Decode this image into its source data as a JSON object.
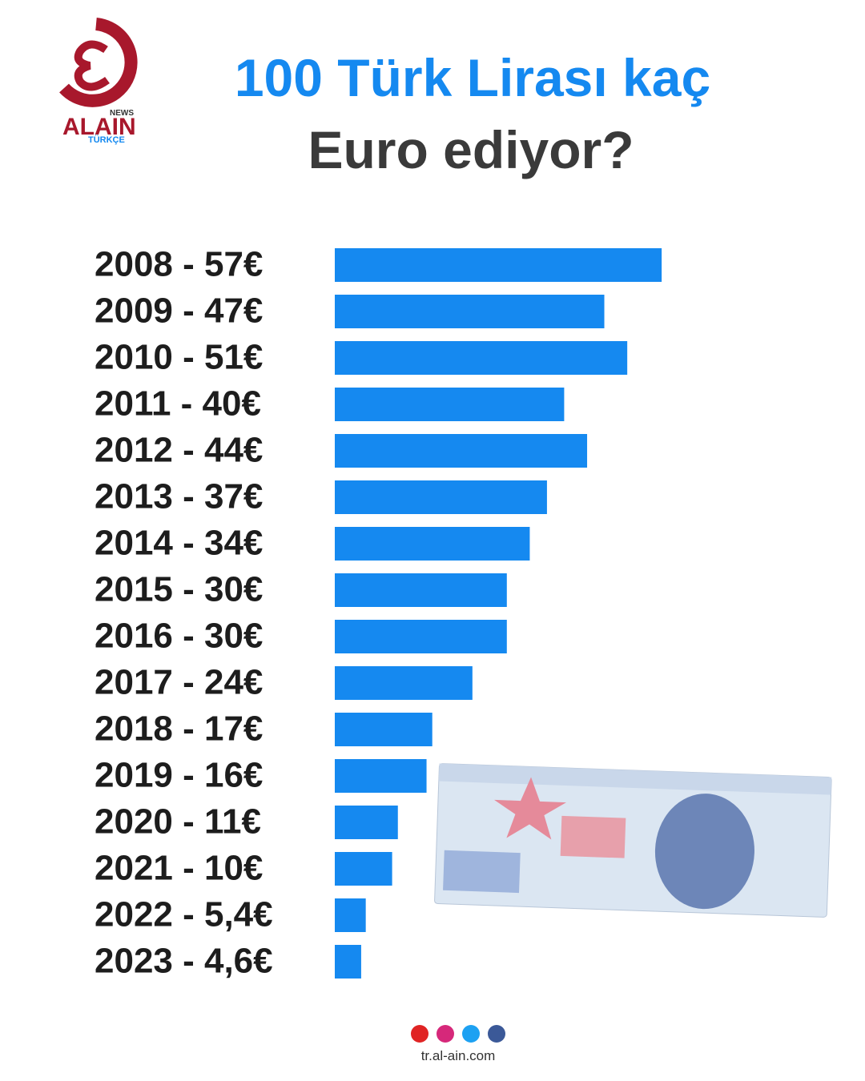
{
  "brand": {
    "name": "ALAIN",
    "tag": "NEWS",
    "sub": "TÜRKÇE"
  },
  "chart_data": {
    "type": "bar",
    "orientation": "horizontal",
    "title": "100 Türk Lirası kaç",
    "subtitle": "Euro ediyor?",
    "categories": [
      "2008 - 57€",
      "2009 - 47€",
      "2010 - 51€",
      "2011 - 40€",
      "2012 - 44€",
      "2013 - 37€",
      "2014 - 34€",
      "2015 - 30€",
      "2016 - 30€",
      "2017 - 24€",
      "2018 - 17€",
      "2019 - 16€",
      "2020 - 11€",
      "2021 - 10€",
      "2022 - 5,4€",
      "2023 - 4,6€"
    ],
    "values": [
      57,
      47,
      51,
      40,
      44,
      37,
      34,
      30,
      30,
      24,
      17,
      16,
      11,
      10,
      5.4,
      4.6
    ],
    "color": "#1589f0"
  },
  "footer": {
    "url": "tr.al-ain.com"
  }
}
